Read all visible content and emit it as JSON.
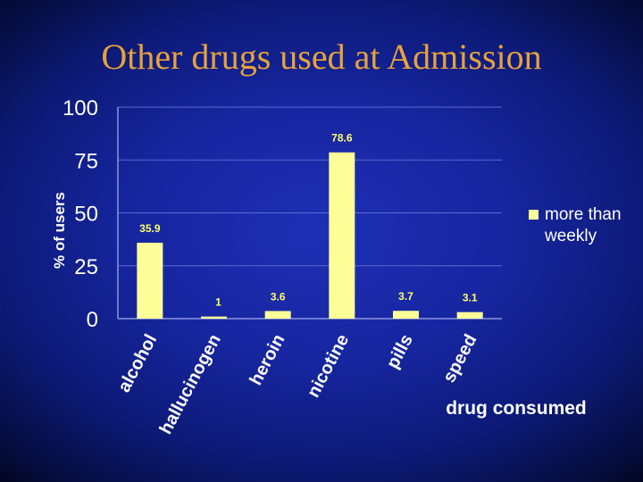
{
  "slide": {
    "title": "Other drugs used at Admission"
  },
  "colors": {
    "bar": "#ffff99",
    "text": "#ffffff",
    "data_label": "#ffff66",
    "grid": "#5a6ad0",
    "title": "#e8a23a"
  },
  "chart_data": {
    "type": "bar",
    "title": "Other drugs used at Admission",
    "categories": [
      "alcohol",
      "hallucinogen",
      "heroin",
      "nicotine",
      "pills",
      "speed"
    ],
    "series": [
      {
        "name": "more than weekly",
        "values": [
          35.9,
          1,
          3.6,
          78.6,
          3.7,
          3.1
        ]
      }
    ],
    "data_labels": [
      "35.9",
      "1",
      "3.6",
      "78.6",
      "3.7",
      "3.1"
    ],
    "xlabel": "drug consumed",
    "ylabel": "% of users",
    "ylim": [
      0,
      100
    ],
    "yticks": [
      0,
      25,
      50,
      75,
      100
    ],
    "ytick_labels": [
      "0",
      "25",
      "50",
      "75",
      "100"
    ],
    "grid": true,
    "legend_position": "right"
  }
}
